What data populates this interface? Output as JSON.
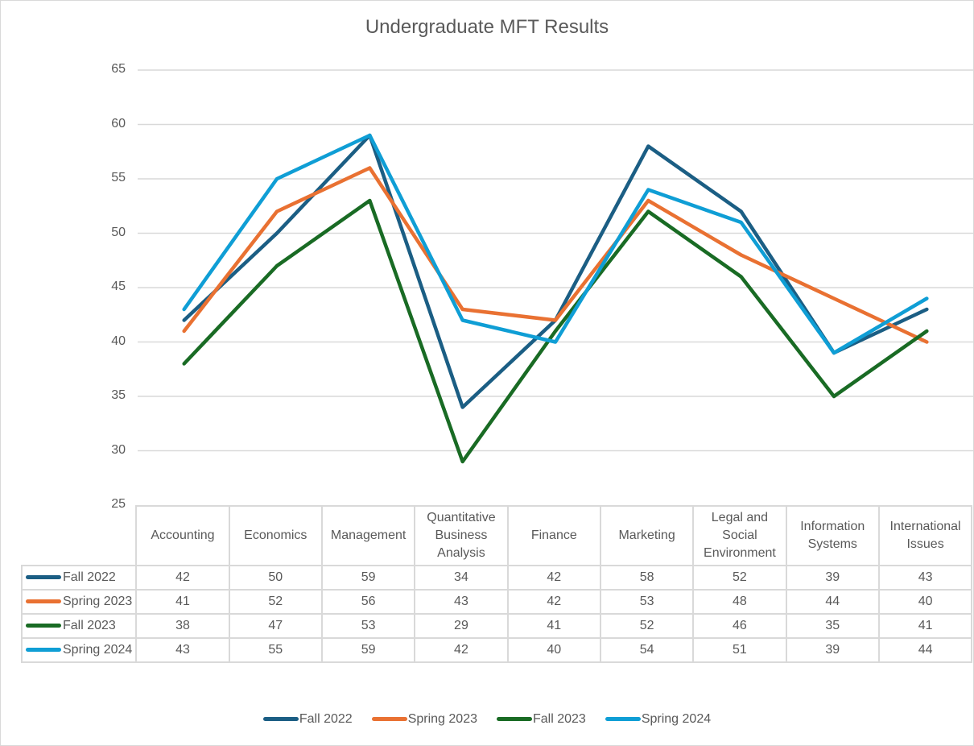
{
  "chart_data": {
    "type": "line",
    "title": "Undergraduate MFT Results",
    "xlabel": "",
    "ylabel": "",
    "ylim": [
      25,
      65
    ],
    "yticks": [
      65,
      60,
      55,
      50,
      45,
      40,
      35,
      30,
      25
    ],
    "grid": true,
    "legend_position": "bottom",
    "data_table": true,
    "categories": [
      "Accounting",
      "Economics",
      "Management",
      "Quantitative Business Analysis",
      "Finance",
      "Marketing",
      "Legal and Social Environment",
      "Information Systems",
      "International Issues"
    ],
    "series": [
      {
        "name": "Fall 2022",
        "color": "#1b5e84",
        "values": [
          42,
          50,
          59,
          34,
          42,
          58,
          52,
          39,
          43
        ]
      },
      {
        "name": "Spring 2023",
        "color": "#e97132",
        "values": [
          41,
          52,
          56,
          43,
          42,
          53,
          48,
          44,
          40
        ]
      },
      {
        "name": "Fall 2023",
        "color": "#196b24",
        "values": [
          38,
          47,
          53,
          29,
          41,
          52,
          46,
          35,
          41
        ]
      },
      {
        "name": "Spring 2024",
        "color": "#0f9ed5",
        "values": [
          43,
          55,
          59,
          42,
          40,
          54,
          51,
          39,
          44
        ]
      }
    ]
  },
  "table_headers": [
    [
      "Accounting"
    ],
    [
      "Economics"
    ],
    [
      "Management"
    ],
    [
      "Quantitative",
      "Business",
      "Analysis"
    ],
    [
      "Finance"
    ],
    [
      "Marketing"
    ],
    [
      "Legal and",
      "Social",
      "Environment"
    ],
    [
      "Information",
      "Systems"
    ],
    [
      "International",
      "Issues"
    ]
  ]
}
